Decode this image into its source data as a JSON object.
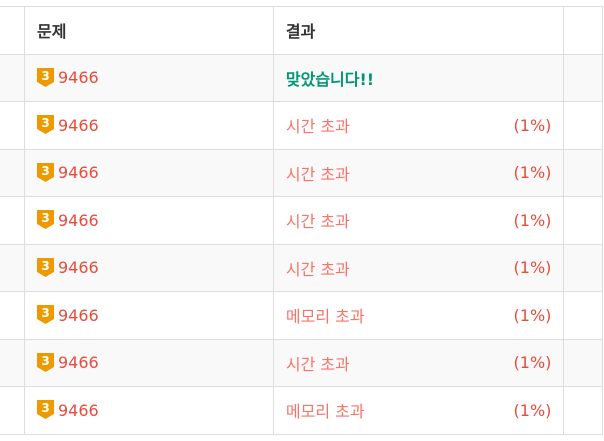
{
  "header": {
    "problem": "문제",
    "result": "결과"
  },
  "colors": {
    "problem_link": "#e74c3c",
    "accepted": "#009874",
    "error": "#fa7268",
    "tier_gold": "#ec9a00"
  },
  "rows": [
    {
      "tier": "3",
      "tier_icon": "gold-3-tier-icon",
      "problem": "9466",
      "result": "맞았습니다!!",
      "status": "accepted",
      "percent": ""
    },
    {
      "tier": "3",
      "tier_icon": "gold-3-tier-icon",
      "problem": "9466",
      "result": "시간 초과",
      "status": "error",
      "percent": "(1%)"
    },
    {
      "tier": "3",
      "tier_icon": "gold-3-tier-icon",
      "problem": "9466",
      "result": "시간 초과",
      "status": "error",
      "percent": "(1%)"
    },
    {
      "tier": "3",
      "tier_icon": "gold-3-tier-icon",
      "problem": "9466",
      "result": "시간 초과",
      "status": "error",
      "percent": "(1%)"
    },
    {
      "tier": "3",
      "tier_icon": "gold-3-tier-icon",
      "problem": "9466",
      "result": "시간 초과",
      "status": "error",
      "percent": "(1%)"
    },
    {
      "tier": "3",
      "tier_icon": "gold-3-tier-icon",
      "problem": "9466",
      "result": "메모리 초과",
      "status": "error",
      "percent": "(1%)"
    },
    {
      "tier": "3",
      "tier_icon": "gold-3-tier-icon",
      "problem": "9466",
      "result": "시간 초과",
      "status": "error",
      "percent": "(1%)"
    },
    {
      "tier": "3",
      "tier_icon": "gold-3-tier-icon",
      "problem": "9466",
      "result": "메모리 초과",
      "status": "error",
      "percent": "(1%)"
    }
  ]
}
